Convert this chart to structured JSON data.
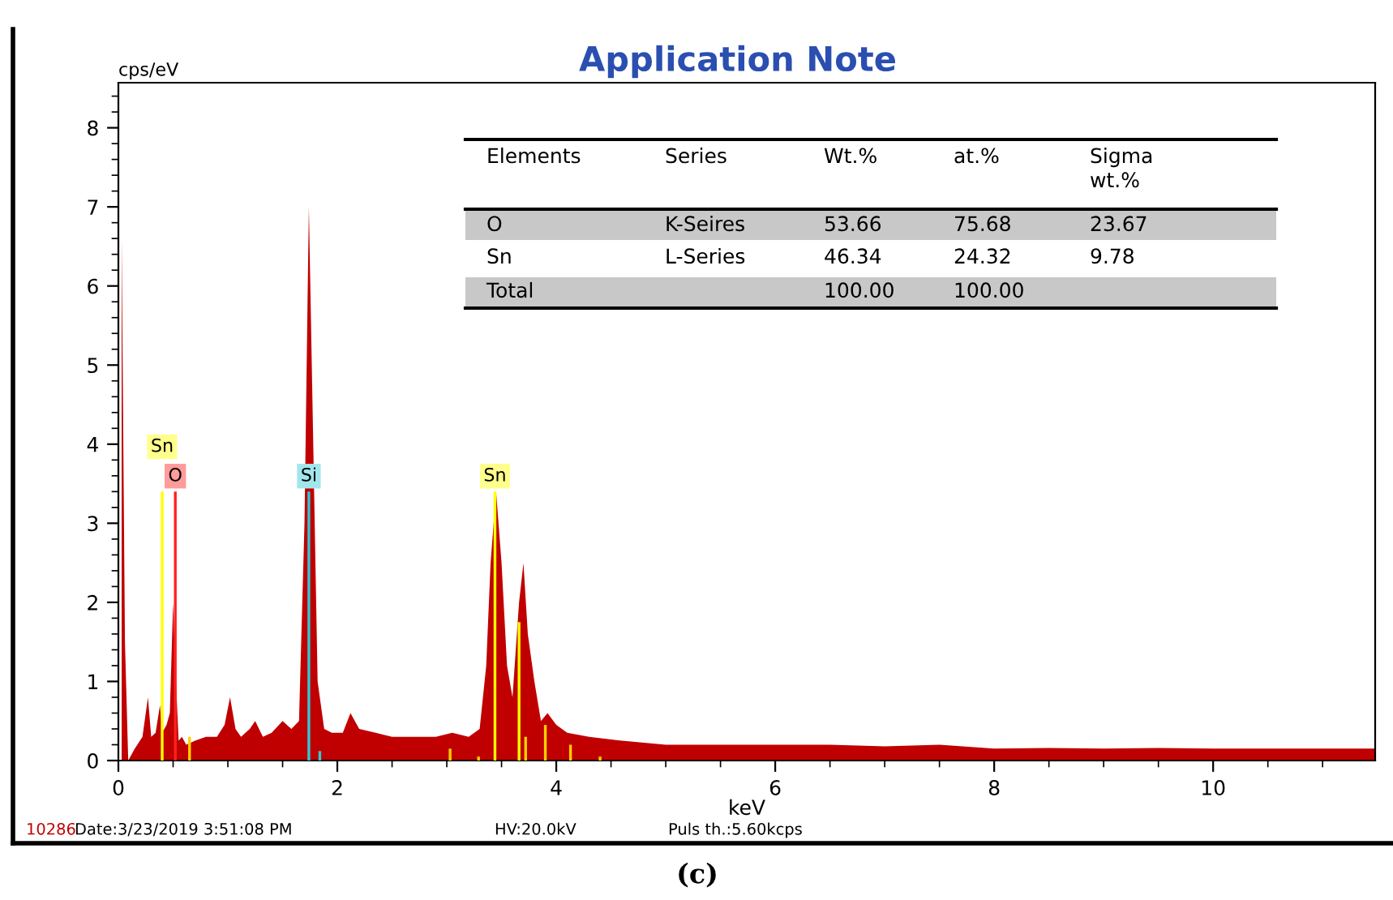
{
  "chart_data": {
    "type": "area",
    "title": "Application Note",
    "xlabel": "keV",
    "ylabel": "cps/eV",
    "xlim": [
      0,
      11.48
    ],
    "ylim": [
      0,
      8.57
    ],
    "xticks": [
      0,
      2,
      4,
      6,
      8,
      10
    ],
    "yticks": [
      0,
      1,
      2,
      3,
      4,
      5,
      6,
      7,
      8
    ],
    "grid": false,
    "legend": false,
    "series": [
      {
        "color": "#c00000",
        "x": [
          0.03,
          0.06,
          0.09,
          0.15,
          0.22,
          0.27,
          0.3,
          0.34,
          0.38,
          0.4,
          0.44,
          0.47,
          0.5,
          0.52,
          0.55,
          0.58,
          0.62,
          0.7,
          0.8,
          0.9,
          0.97,
          1.02,
          1.07,
          1.12,
          1.2,
          1.25,
          1.32,
          1.4,
          1.5,
          1.58,
          1.65,
          1.7,
          1.74,
          1.78,
          1.82,
          1.88,
          1.95,
          2.05,
          2.12,
          2.2,
          2.35,
          2.5,
          2.7,
          2.9,
          3.05,
          3.2,
          3.3,
          3.36,
          3.4,
          3.45,
          3.5,
          3.55,
          3.6,
          3.63,
          3.66,
          3.7,
          3.74,
          3.8,
          3.86,
          3.92,
          4.0,
          4.1,
          4.3,
          4.6,
          5.0,
          5.5,
          6.0,
          6.5,
          7.0,
          7.5,
          8.0,
          8.5,
          9.0,
          9.5,
          10.0,
          10.5,
          11.0,
          11.48
        ],
        "values": [
          6.6,
          1.5,
          0.0,
          0.15,
          0.3,
          0.8,
          0.3,
          0.35,
          0.7,
          0.35,
          0.45,
          0.6,
          2.0,
          1.2,
          0.25,
          0.3,
          0.2,
          0.25,
          0.3,
          0.3,
          0.45,
          0.8,
          0.4,
          0.3,
          0.4,
          0.5,
          0.3,
          0.35,
          0.5,
          0.4,
          0.5,
          3.0,
          7.0,
          4.0,
          1.0,
          0.4,
          0.35,
          0.35,
          0.6,
          0.4,
          0.35,
          0.3,
          0.3,
          0.3,
          0.35,
          0.3,
          0.4,
          1.2,
          2.5,
          3.4,
          2.5,
          1.2,
          0.8,
          1.4,
          2.0,
          2.5,
          1.6,
          1.0,
          0.5,
          0.6,
          0.45,
          0.35,
          0.3,
          0.25,
          0.2,
          0.2,
          0.2,
          0.2,
          0.18,
          0.2,
          0.15,
          0.16,
          0.15,
          0.16,
          0.15,
          0.15,
          0.15,
          0.15
        ]
      },
      {
        "type": "bar",
        "x": [
          0.4,
          0.52,
          0.65,
          1.74,
          1.84,
          3.03,
          3.29,
          3.44,
          3.66,
          3.72,
          3.9,
          4.13,
          4.4
        ],
        "values": [
          3.4,
          3.4,
          0.3,
          3.4,
          0.12,
          0.15,
          0.05,
          3.4,
          1.75,
          0.3,
          0.45,
          0.2,
          0.05
        ],
        "colors": [
          "#ffff00",
          "#ff2020",
          "#ffd000",
          "#30c8d8",
          "#30c8d8",
          "#ffd000",
          "#ffd000",
          "#ffff00",
          "#ffff00",
          "#ffd000",
          "#ffd000",
          "#ffd000",
          "#ffd000"
        ]
      }
    ],
    "annotations": [
      {
        "text": "Sn",
        "x": 0.4,
        "y": 3.4
      },
      {
        "text": "O",
        "x": 0.52,
        "y": 3.4
      },
      {
        "text": "Si",
        "x": 1.74,
        "y": 3.4
      },
      {
        "text": "Sn",
        "x": 3.44,
        "y": 3.4
      },
      "10286",
      "Date:3/23/2019 3:51:08 PM",
      "HV:20.0kV",
      "Puls th.:5.60kcps",
      "(c)",
      "Elements",
      "Series",
      "Wt.%",
      "at.%",
      "Sigma\nwt.%",
      "O",
      "K-Seires",
      "53.66",
      "75.68",
      "23.67",
      "Sn",
      "L-Series",
      "46.34",
      "24.32",
      "9.78",
      "Total",
      "100.00",
      "100.00"
    ]
  }
}
